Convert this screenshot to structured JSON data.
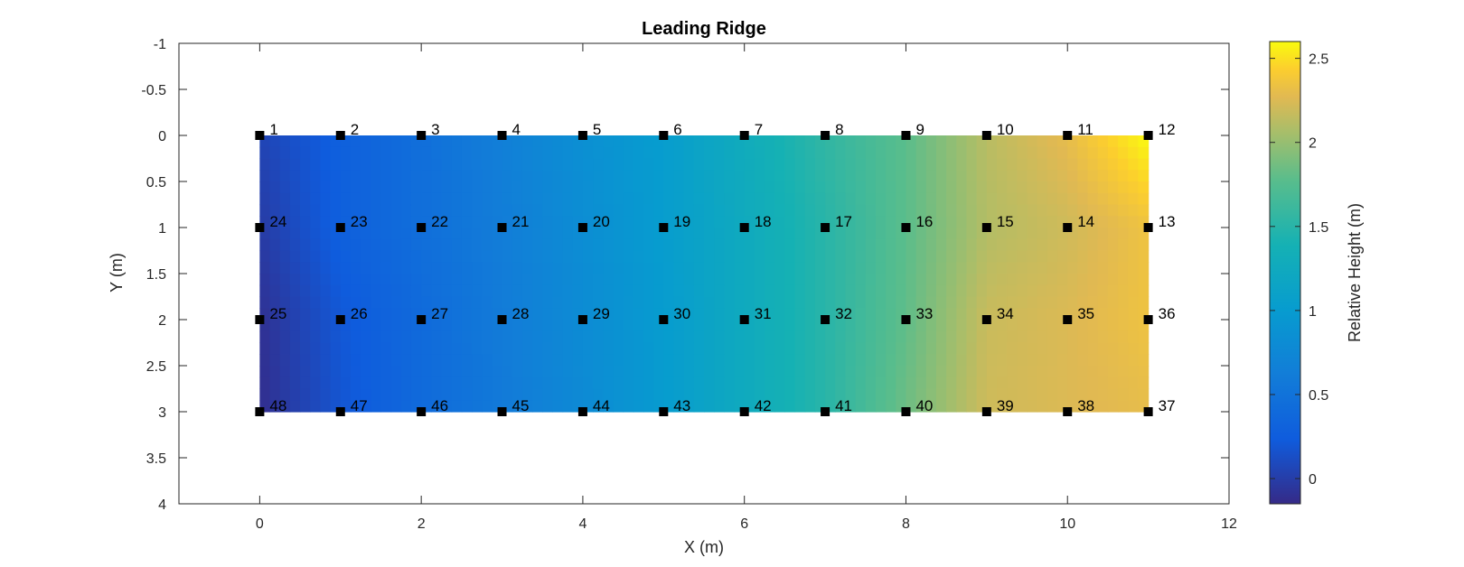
{
  "chart_data": {
    "type": "heatmap",
    "title": "Leading Ridge",
    "xlabel": "X (m)",
    "ylabel": "Y (m)",
    "xlim": [
      -1,
      12
    ],
    "ylim": [
      -1,
      4
    ],
    "y_reversed": true,
    "xticks": [
      0,
      2,
      4,
      6,
      8,
      10,
      12
    ],
    "xtick_labels": [
      "0",
      "2",
      "4",
      "6",
      "8",
      "10",
      "12"
    ],
    "yticks": [
      -1,
      -0.5,
      0,
      0.5,
      1,
      1.5,
      2,
      2.5,
      3,
      3.5,
      4
    ],
    "ytick_labels": [
      "-1",
      "-0.5",
      "0",
      "0.5",
      "1",
      "1.5",
      "2",
      "2.5",
      "3",
      "3.5",
      "4"
    ],
    "grid": false,
    "colormap": "parula",
    "colorbar": {
      "label": "Relative Height (m)",
      "clim": [
        -0.15,
        2.6
      ],
      "ticks": [
        0,
        0.5,
        1,
        1.5,
        2,
        2.5
      ],
      "tick_labels": [
        "0",
        "0.5",
        "1",
        "1.5",
        "2",
        "2.5"
      ]
    },
    "grid_x": [
      0,
      1,
      2,
      3,
      4,
      5,
      6,
      7,
      8,
      9,
      10,
      11
    ],
    "grid_y": [
      0,
      1,
      2,
      3
    ],
    "z": [
      [
        0.05,
        0.28,
        0.45,
        0.65,
        0.85,
        1.02,
        1.28,
        1.55,
        1.78,
        2.12,
        2.3,
        2.6
      ],
      [
        -0.02,
        0.28,
        0.45,
        0.62,
        0.82,
        1.02,
        1.25,
        1.5,
        1.78,
        2.1,
        2.2,
        2.35
      ],
      [
        -0.1,
        0.2,
        0.4,
        0.6,
        0.8,
        1.0,
        1.25,
        1.5,
        1.8,
        2.18,
        2.25,
        2.35
      ],
      [
        -0.12,
        0.18,
        0.4,
        0.58,
        0.78,
        1.0,
        1.25,
        1.5,
        1.85,
        2.2,
        2.25,
        2.3
      ]
    ],
    "marker_color": "#000000",
    "points": [
      {
        "label": "1",
        "x": 0,
        "y": 0
      },
      {
        "label": "2",
        "x": 1,
        "y": 0
      },
      {
        "label": "3",
        "x": 2,
        "y": 0
      },
      {
        "label": "4",
        "x": 3,
        "y": 0
      },
      {
        "label": "5",
        "x": 4,
        "y": 0
      },
      {
        "label": "6",
        "x": 5,
        "y": 0
      },
      {
        "label": "7",
        "x": 6,
        "y": 0
      },
      {
        "label": "8",
        "x": 7,
        "y": 0
      },
      {
        "label": "9",
        "x": 8,
        "y": 0
      },
      {
        "label": "10",
        "x": 9,
        "y": 0
      },
      {
        "label": "11",
        "x": 10,
        "y": 0
      },
      {
        "label": "12",
        "x": 11,
        "y": 0
      },
      {
        "label": "13",
        "x": 11,
        "y": 1
      },
      {
        "label": "14",
        "x": 10,
        "y": 1
      },
      {
        "label": "15",
        "x": 9,
        "y": 1
      },
      {
        "label": "16",
        "x": 8,
        "y": 1
      },
      {
        "label": "17",
        "x": 7,
        "y": 1
      },
      {
        "label": "18",
        "x": 6,
        "y": 1
      },
      {
        "label": "19",
        "x": 5,
        "y": 1
      },
      {
        "label": "20",
        "x": 4,
        "y": 1
      },
      {
        "label": "21",
        "x": 3,
        "y": 1
      },
      {
        "label": "22",
        "x": 2,
        "y": 1
      },
      {
        "label": "23",
        "x": 1,
        "y": 1
      },
      {
        "label": "24",
        "x": 0,
        "y": 1
      },
      {
        "label": "25",
        "x": 0,
        "y": 2
      },
      {
        "label": "26",
        "x": 1,
        "y": 2
      },
      {
        "label": "27",
        "x": 2,
        "y": 2
      },
      {
        "label": "28",
        "x": 3,
        "y": 2
      },
      {
        "label": "29",
        "x": 4,
        "y": 2
      },
      {
        "label": "30",
        "x": 5,
        "y": 2
      },
      {
        "label": "31",
        "x": 6,
        "y": 2
      },
      {
        "label": "32",
        "x": 7,
        "y": 2
      },
      {
        "label": "33",
        "x": 8,
        "y": 2
      },
      {
        "label": "34",
        "x": 9,
        "y": 2
      },
      {
        "label": "35",
        "x": 10,
        "y": 2
      },
      {
        "label": "36",
        "x": 11,
        "y": 2
      },
      {
        "label": "37",
        "x": 11,
        "y": 3
      },
      {
        "label": "38",
        "x": 10,
        "y": 3
      },
      {
        "label": "39",
        "x": 9,
        "y": 3
      },
      {
        "label": "40",
        "x": 8,
        "y": 3
      },
      {
        "label": "41",
        "x": 7,
        "y": 3
      },
      {
        "label": "42",
        "x": 6,
        "y": 3
      },
      {
        "label": "43",
        "x": 5,
        "y": 3
      },
      {
        "label": "44",
        "x": 4,
        "y": 3
      },
      {
        "label": "45",
        "x": 3,
        "y": 3
      },
      {
        "label": "46",
        "x": 2,
        "y": 3
      },
      {
        "label": "47",
        "x": 1,
        "y": 3
      },
      {
        "label": "48",
        "x": 0,
        "y": 3
      }
    ]
  }
}
